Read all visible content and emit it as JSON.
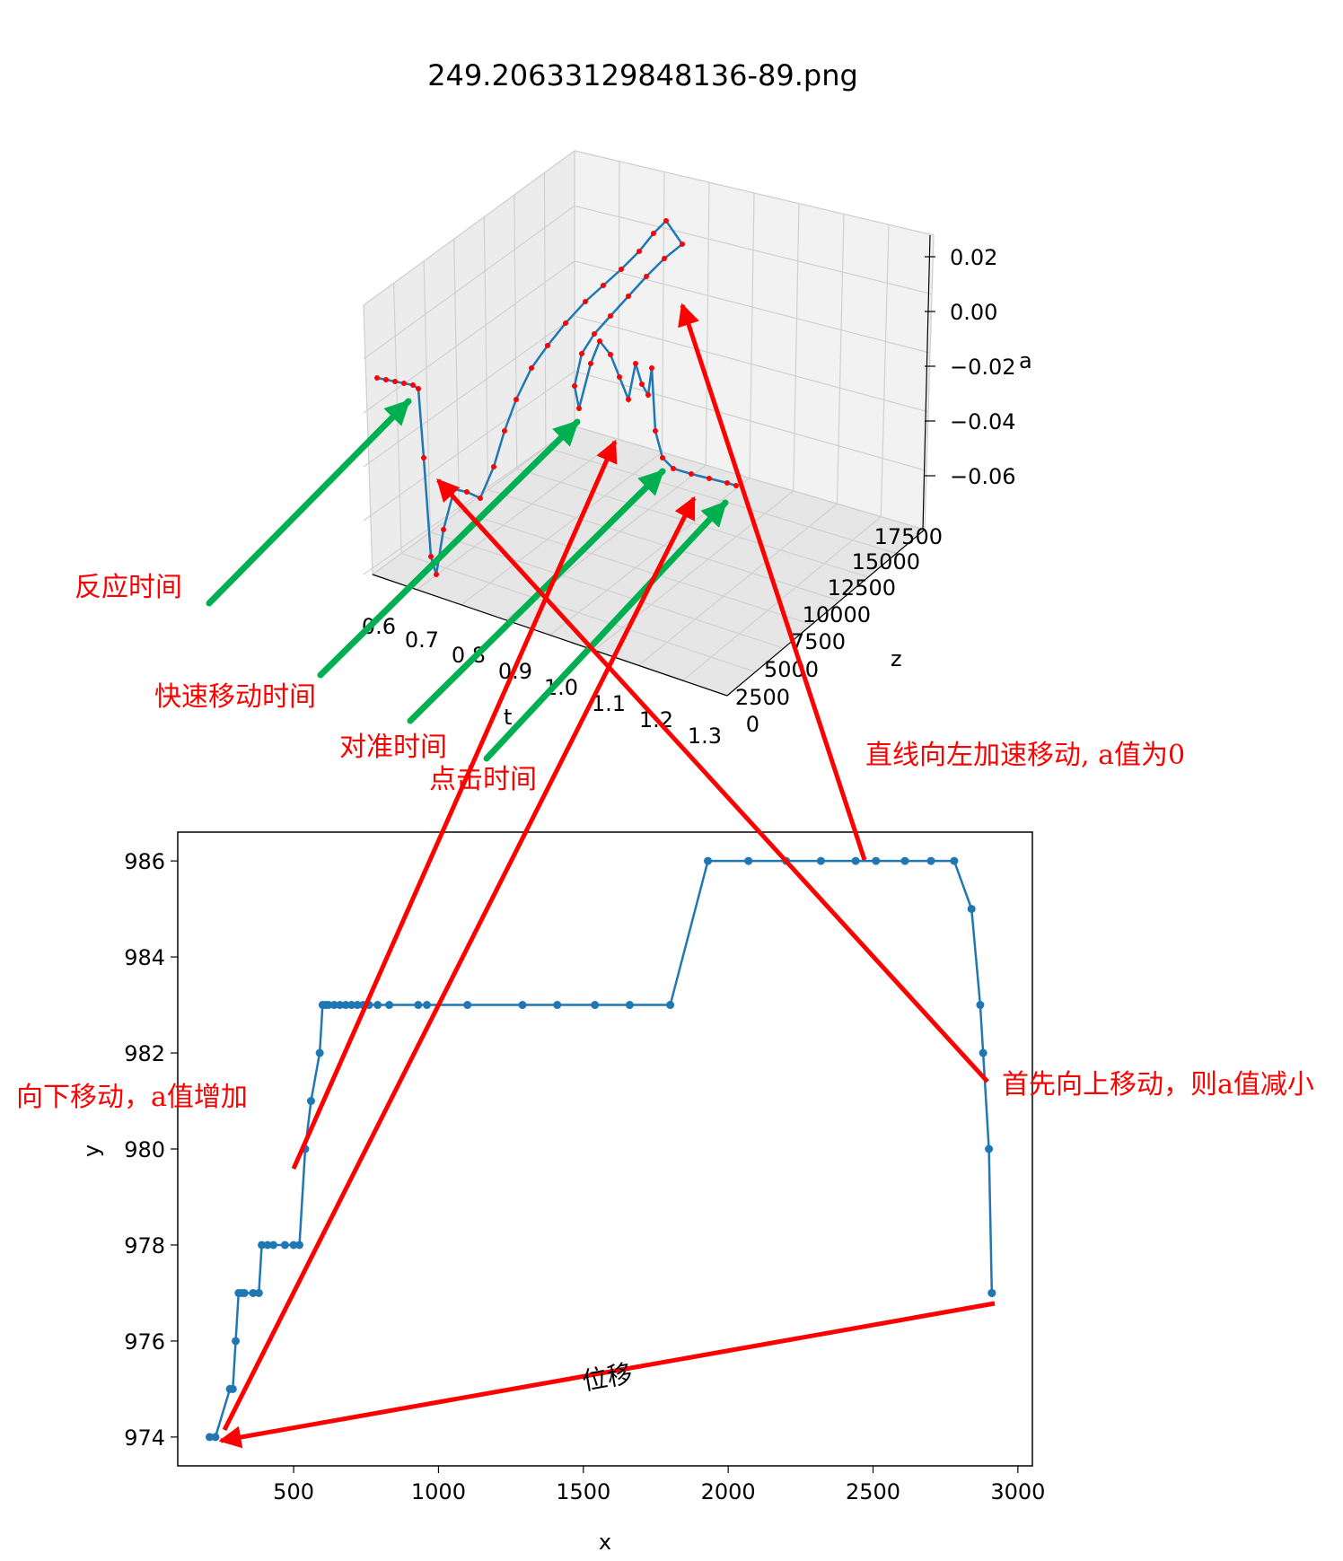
{
  "title": "249.20633129848136-89.png",
  "colors": {
    "series": "#1f77b4",
    "marker3d": "#ff0000",
    "red_arrow": "#ff0000",
    "green_arrow": "#00b050",
    "pane": "#f2f2f2",
    "grid": "#d0d0d0"
  },
  "chart_data": [
    {
      "type": "line",
      "projection": "3d",
      "xlabel": "t",
      "ylabel": "z",
      "zlabel": "a",
      "t_ticks": [
        "0.6",
        "0.7",
        "0.8",
        "0.9",
        "1.0",
        "1.1",
        "1.2",
        "1.3"
      ],
      "z_ticks": [
        "0",
        "2500",
        "5000",
        "7500",
        "10000",
        "12500",
        "15000",
        "17500"
      ],
      "a_ticks": [
        "0.02",
        "0.00",
        "−0.02",
        "−0.04",
        "−0.06"
      ],
      "xlim": [
        0.55,
        1.3
      ],
      "ylim": [
        0,
        17500
      ],
      "zlim": [
        -0.07,
        0.025
      ],
      "marker": "red dots",
      "line_color": "#1f77b4"
    },
    {
      "type": "line",
      "xlabel": "x",
      "ylabel": "y",
      "xlim": [
        100,
        3050
      ],
      "ylim": [
        973.4,
        986.6
      ],
      "x_ticks": [
        "500",
        "1000",
        "1500",
        "2000",
        "2500",
        "3000"
      ],
      "y_ticks": [
        "974",
        "976",
        "978",
        "980",
        "982",
        "984",
        "986"
      ],
      "series": [
        {
          "x": [
            210,
            230,
            280,
            290,
            300,
            310,
            320,
            330,
            360,
            380,
            390,
            410,
            430,
            470,
            500,
            520,
            540,
            560,
            590,
            600,
            610,
            620,
            640,
            660,
            680,
            700,
            720,
            740,
            760,
            790,
            830,
            930,
            960,
            1100,
            1290,
            1410,
            1540,
            1660,
            1800,
            1930,
            2070,
            2200,
            2320,
            2440,
            2510,
            2610,
            2700,
            2780,
            2840,
            2870,
            2880,
            2900,
            2910,
            2910
          ],
          "y": [
            974,
            974,
            975,
            975,
            976,
            977,
            977,
            977,
            977,
            977,
            978,
            978,
            978,
            978,
            978,
            978,
            980,
            981,
            982,
            983,
            983,
            983,
            983,
            983,
            983,
            983,
            983,
            983,
            983,
            983,
            983,
            983,
            983,
            983,
            983,
            983,
            983,
            983,
            983,
            986,
            986,
            986,
            986,
            986,
            986,
            986,
            986,
            986,
            985,
            983,
            982,
            980,
            977,
            977
          ]
        }
      ]
    }
  ],
  "annotations": {
    "reaction_time": "反应时间",
    "fast_move_time": "快速移动时间",
    "align_time": "对准时间",
    "click_time": "点击时间",
    "straight_left": "直线向左加速移动, a值为0",
    "move_down": "向下移动，a值增加",
    "move_up_first": "首先向上移动，则a值减小",
    "displacement": "位移"
  }
}
